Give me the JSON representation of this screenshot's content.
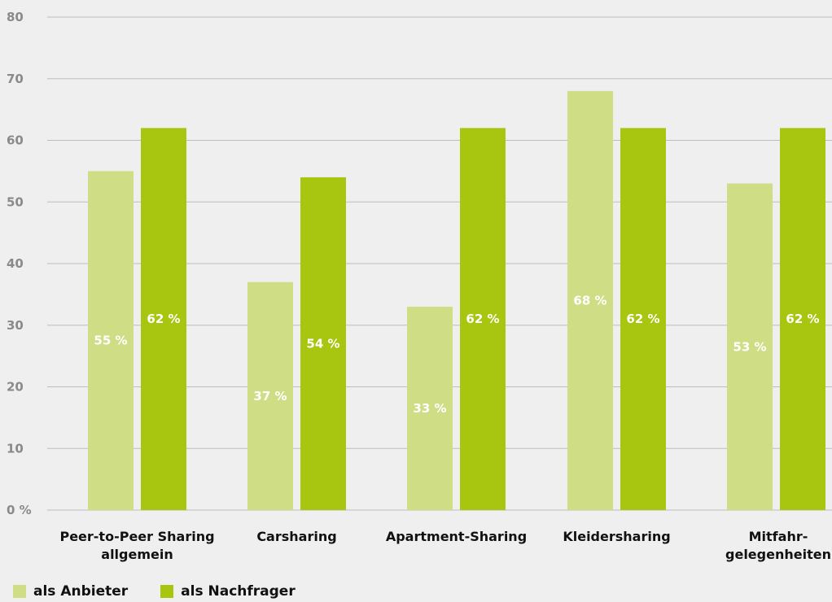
{
  "chart_data": {
    "type": "bar",
    "categories": [
      [
        "Peer-to-Peer Sharing",
        "allgemein"
      ],
      [
        "Carsharing"
      ],
      [
        "Apartment-Sharing"
      ],
      [
        "Kleidersharing"
      ],
      [
        "Mitfahr-",
        "gelegenheiten"
      ]
    ],
    "series": [
      {
        "name": "als Anbieter",
        "color": "#cfdd85",
        "values": [
          55,
          37,
          33,
          68,
          53
        ],
        "labels": [
          "55 %",
          "37 %",
          "33 %",
          "68 %",
          "53 %"
        ]
      },
      {
        "name": "als Nachfrager",
        "color": "#a8c60f",
        "values": [
          62,
          54,
          62,
          62,
          62
        ],
        "labels": [
          "62 %",
          "54 %",
          "62 %",
          "62 %",
          "62 %"
        ]
      }
    ],
    "ylim": [
      0,
      80
    ],
    "y_ticks": [
      0,
      10,
      20,
      30,
      40,
      50,
      60,
      70,
      80
    ],
    "y_tick_labels": [
      "0 %",
      "10",
      "20",
      "30",
      "40",
      "50",
      "60",
      "70",
      "80"
    ],
    "grid": true,
    "legend_position": "bottom-left",
    "gridline_color": "#bdbdbd"
  }
}
